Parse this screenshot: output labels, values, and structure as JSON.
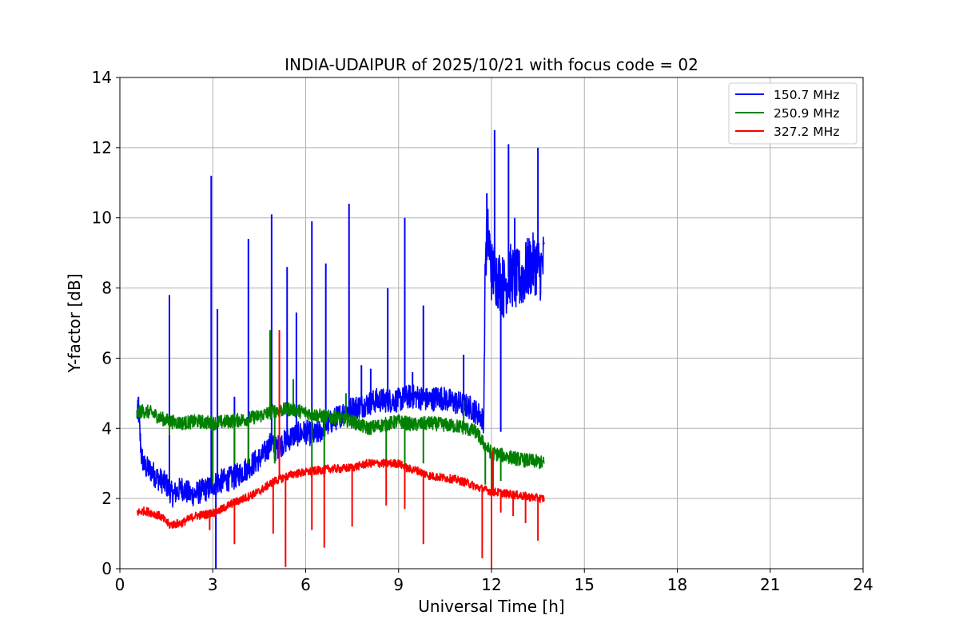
{
  "chart_data": {
    "type": "line",
    "title": "INDIA-UDAIPUR of 2025/10/21 with focus code = 02",
    "xlabel": "Universal Time [h]",
    "ylabel": "Y-factor [dB]",
    "xlim": [
      0,
      24
    ],
    "ylim": [
      0,
      14
    ],
    "xticks": [
      0,
      3,
      6,
      9,
      12,
      15,
      18,
      21,
      24
    ],
    "yticks": [
      0,
      2,
      4,
      6,
      8,
      10,
      12,
      14
    ],
    "grid": true,
    "legend_position": "top-right",
    "series": [
      {
        "name": "150.7 MHz",
        "color": "#0000ff",
        "noise": 0.35,
        "x": [
          0.55,
          0.6,
          0.65,
          0.7,
          0.8,
          1.0,
          1.2,
          1.5,
          1.7,
          2.0,
          2.3,
          2.6,
          2.9,
          3.0,
          3.3,
          3.7,
          4.0,
          4.3,
          4.6,
          4.9,
          5.0,
          5.3,
          5.6,
          6.0,
          6.3,
          6.7,
          7.0,
          7.3,
          7.6,
          8.0,
          8.3,
          8.6,
          9.0,
          9.3,
          9.6,
          10.0,
          10.3,
          10.6,
          11.0,
          11.3,
          11.6,
          11.75,
          11.8,
          11.9,
          12.0,
          12.2,
          12.4,
          12.6,
          12.8,
          13.0,
          13.2,
          13.4,
          13.6,
          13.7
        ],
        "y": [
          4.4,
          4.5,
          3.8,
          3.2,
          2.9,
          2.8,
          2.6,
          2.4,
          2.1,
          2.3,
          2.1,
          2.2,
          2.3,
          2.4,
          2.5,
          2.6,
          2.8,
          3.0,
          3.2,
          3.6,
          3.4,
          3.6,
          3.8,
          3.9,
          3.8,
          4.1,
          4.3,
          4.5,
          4.6,
          4.7,
          4.8,
          4.8,
          4.8,
          4.9,
          4.9,
          4.8,
          4.9,
          4.8,
          4.7,
          4.6,
          4.4,
          4.2,
          9.0,
          9.5,
          8.5,
          8.3,
          8.0,
          8.4,
          8.2,
          8.3,
          8.6,
          8.7,
          8.5,
          8.8
        ],
        "spikes": [
          [
            0.6,
            4.9
          ],
          [
            1.6,
            7.8
          ],
          [
            2.95,
            11.2
          ],
          [
            3.1,
            0.0
          ],
          [
            3.15,
            7.4
          ],
          [
            3.7,
            4.9
          ],
          [
            4.15,
            9.4
          ],
          [
            4.9,
            10.1
          ],
          [
            5.4,
            8.6
          ],
          [
            5.7,
            7.3
          ],
          [
            6.2,
            9.9
          ],
          [
            6.65,
            8.7
          ],
          [
            7.4,
            10.4
          ],
          [
            7.8,
            5.8
          ],
          [
            8.1,
            5.7
          ],
          [
            8.65,
            8.0
          ],
          [
            9.2,
            10.0
          ],
          [
            9.45,
            5.6
          ],
          [
            9.8,
            7.5
          ],
          [
            11.1,
            6.1
          ],
          [
            11.85,
            10.7
          ],
          [
            12.1,
            12.5
          ],
          [
            12.3,
            3.9
          ],
          [
            12.55,
            12.1
          ],
          [
            12.75,
            10.0
          ],
          [
            13.5,
            12.0
          ]
        ]
      },
      {
        "name": "250.9 MHz",
        "color": "#008000",
        "noise": 0.2,
        "x": [
          0.55,
          0.7,
          1.0,
          1.3,
          1.6,
          2.0,
          2.5,
          3.0,
          3.5,
          4.0,
          4.5,
          5.0,
          5.5,
          6.0,
          6.5,
          7.0,
          7.5,
          8.0,
          8.5,
          9.0,
          9.5,
          10.0,
          10.5,
          11.0,
          11.5,
          11.8,
          12.0,
          12.5,
          13.0,
          13.5,
          13.7
        ],
        "y": [
          4.4,
          4.5,
          4.45,
          4.3,
          4.2,
          4.15,
          4.2,
          4.15,
          4.2,
          4.25,
          4.35,
          4.5,
          4.55,
          4.45,
          4.35,
          4.3,
          4.2,
          4.0,
          4.1,
          4.2,
          4.1,
          4.15,
          4.1,
          4.05,
          3.9,
          3.5,
          3.3,
          3.2,
          3.1,
          3.05,
          3.0
        ],
        "spikes": [
          [
            1.6,
            3.8
          ],
          [
            3.0,
            2.4
          ],
          [
            3.7,
            3.0
          ],
          [
            4.15,
            3.0
          ],
          [
            4.85,
            6.8
          ],
          [
            5.0,
            3.0
          ],
          [
            5.6,
            5.4
          ],
          [
            6.2,
            2.6
          ],
          [
            6.6,
            2.6
          ],
          [
            7.3,
            5.0
          ],
          [
            8.6,
            3.0
          ],
          [
            9.2,
            2.9
          ],
          [
            9.8,
            3.0
          ],
          [
            11.1,
            4.8
          ],
          [
            11.8,
            2.4
          ],
          [
            12.0,
            1.9
          ],
          [
            12.3,
            2.5
          ]
        ]
      },
      {
        "name": "327.2 MHz",
        "color": "#ff0000",
        "noise": 0.12,
        "x": [
          0.55,
          0.8,
          1.0,
          1.3,
          1.6,
          2.0,
          2.4,
          2.8,
          3.2,
          3.6,
          4.0,
          4.5,
          4.9,
          5.0,
          5.3,
          5.6,
          6.0,
          6.4,
          6.8,
          7.2,
          7.6,
          8.0,
          8.5,
          9.0,
          9.3,
          9.6,
          10.0,
          10.4,
          10.8,
          11.2,
          11.6,
          12.0,
          12.4,
          12.8,
          13.2,
          13.6,
          13.7
        ],
        "y": [
          1.6,
          1.65,
          1.6,
          1.5,
          1.25,
          1.3,
          1.5,
          1.55,
          1.65,
          1.85,
          2.0,
          2.2,
          2.45,
          2.5,
          2.6,
          2.7,
          2.75,
          2.8,
          2.85,
          2.85,
          2.9,
          3.0,
          3.0,
          3.0,
          2.85,
          2.8,
          2.65,
          2.6,
          2.55,
          2.45,
          2.3,
          2.2,
          2.15,
          2.1,
          2.05,
          2.0,
          2.0
        ],
        "spikes": [
          [
            2.9,
            1.1
          ],
          [
            3.7,
            0.7
          ],
          [
            4.95,
            1.0
          ],
          [
            5.15,
            6.8
          ],
          [
            5.35,
            0.05
          ],
          [
            6.2,
            1.1
          ],
          [
            6.6,
            0.6
          ],
          [
            7.5,
            1.2
          ],
          [
            8.6,
            1.8
          ],
          [
            9.2,
            1.7
          ],
          [
            9.8,
            0.7
          ],
          [
            11.7,
            0.3
          ],
          [
            12.0,
            0.0
          ],
          [
            12.05,
            3.4
          ],
          [
            12.3,
            1.6
          ],
          [
            12.7,
            1.5
          ],
          [
            13.1,
            1.3
          ],
          [
            13.5,
            0.8
          ]
        ]
      }
    ]
  }
}
